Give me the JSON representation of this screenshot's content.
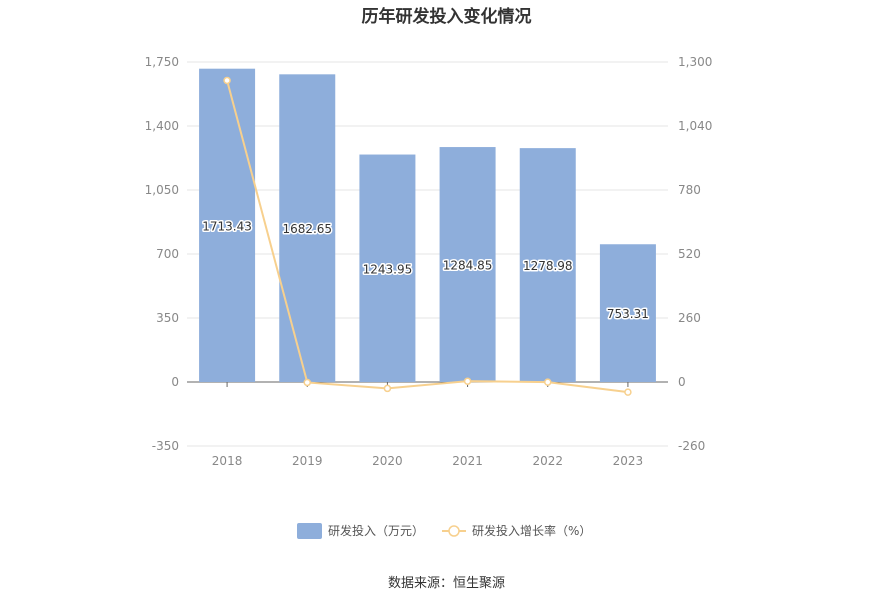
{
  "title": "历年研发投入变化情况",
  "source": "数据来源：恒生聚源",
  "chart_data": {
    "type": "bar",
    "categories": [
      "2018",
      "2019",
      "2020",
      "2021",
      "2022",
      "2023"
    ],
    "series": [
      {
        "name": "研发投入（万元）",
        "type": "bar",
        "axis": "left",
        "values": [
          1713.43,
          1682.65,
          1243.95,
          1284.85,
          1278.98,
          753.31
        ],
        "labels": [
          "1713.43",
          "1682.65",
          "1243.95",
          "1284.85",
          "1278.98",
          "753.31"
        ],
        "color": "#8eaedb"
      },
      {
        "name": "研发投入增长率（%）",
        "type": "line",
        "axis": "right",
        "values": [
          1225,
          -1.8,
          -26.1,
          3.3,
          -0.5,
          -41.1
        ],
        "color": "#f7d08e"
      }
    ],
    "left_axis": {
      "ylim": [
        -350,
        1750
      ],
      "ticks": [
        "1,750",
        "1,400",
        "1,050",
        "700",
        "350",
        "0",
        "-350"
      ]
    },
    "right_axis": {
      "ylim": [
        -260,
        1300
      ],
      "ticks": [
        "1,300",
        "1,040",
        "780",
        "520",
        "260",
        "0",
        "-260"
      ]
    },
    "grid": true,
    "legend_position": "bottom"
  }
}
